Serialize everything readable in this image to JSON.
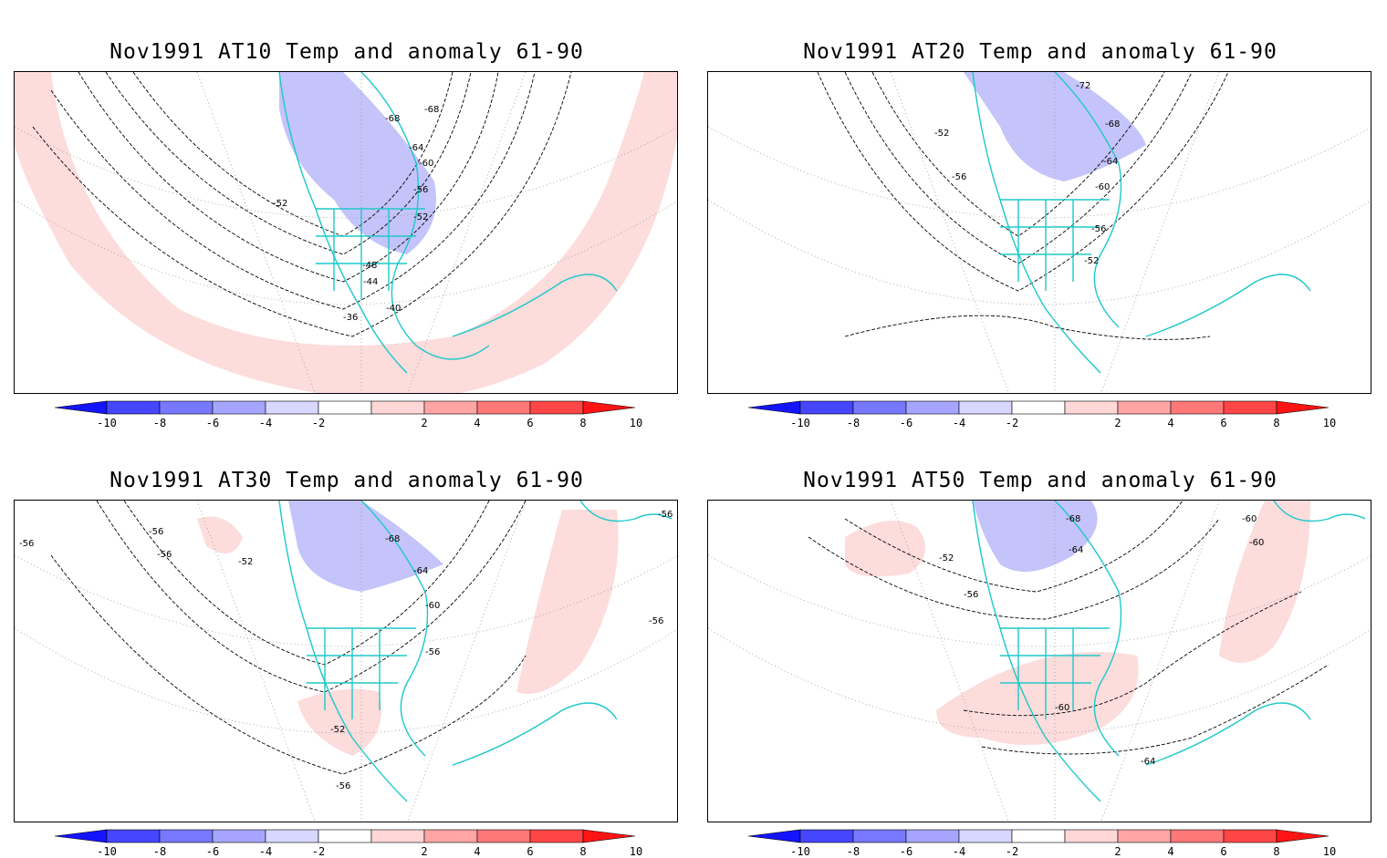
{
  "panels": [
    {
      "title": "Nov1991 AT10 Temp and anomaly 61-90",
      "contour_labels": [
        "-68",
        "-68",
        "-64",
        "-60",
        "-56",
        "-52",
        "-52",
        "-48",
        "-44",
        "-40",
        "-36"
      ]
    },
    {
      "title": "Nov1991 AT20 Temp and anomaly 61-90",
      "contour_labels": [
        "-72",
        "-68",
        "-64",
        "-60",
        "-56",
        "-52",
        "-56",
        "-52"
      ]
    },
    {
      "title": "Nov1991 AT30 Temp and anomaly 61-90",
      "contour_labels": [
        "-56",
        "-56",
        "-52",
        "-68",
        "-64",
        "-60",
        "-56",
        "-52",
        "-56",
        "-56",
        "-56",
        "-56"
      ]
    },
    {
      "title": "Nov1991 AT50 Temp and anomaly 61-90",
      "contour_labels": [
        "-68",
        "-64",
        "-52",
        "-56",
        "-60",
        "-60",
        "-60",
        "-64"
      ]
    }
  ],
  "colorbar": {
    "labels": [
      "-10",
      "-8",
      "-6",
      "-4",
      "-2",
      "2",
      "4",
      "6",
      "8",
      "10"
    ],
    "colors": [
      "#1414ff",
      "#4646ff",
      "#7878ff",
      "#a5a5ff",
      "#d7d7ff",
      "#ffffff",
      "#ffd7d7",
      "#ffa5a5",
      "#ff7878",
      "#ff4646",
      "#ff1414"
    ]
  },
  "colors": {
    "coastline": "#1ec8c8",
    "cold_anomaly": "#c4c4fa",
    "warm_anomaly": "#fddcdc",
    "contour": "#000000",
    "grid": "#999999"
  }
}
